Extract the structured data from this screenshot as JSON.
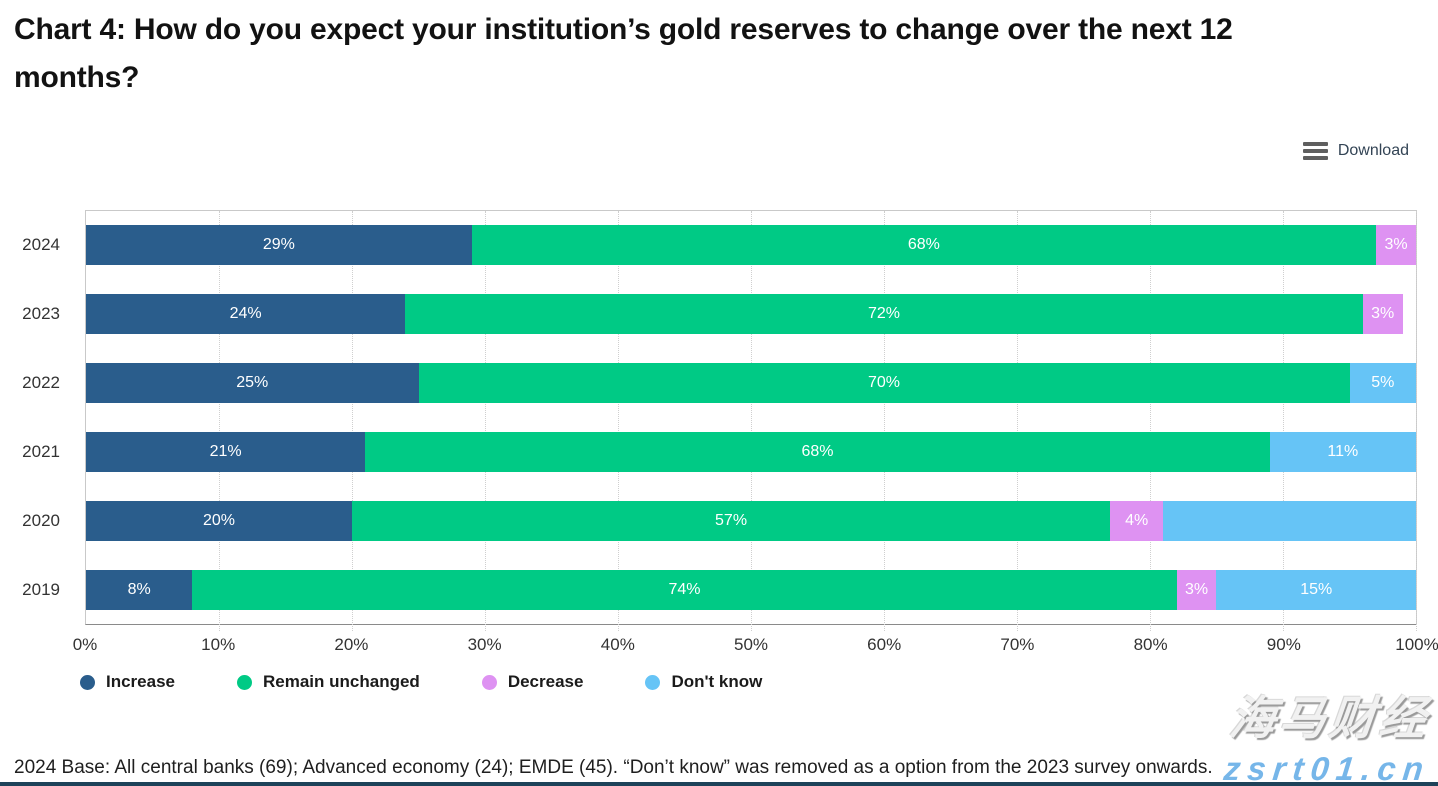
{
  "page": {
    "title": "Chart 4: How do you expect your institution’s gold reserves to change over the next 12 months?"
  },
  "toolbar": {
    "download_label": "Download"
  },
  "chart_data": {
    "type": "bar",
    "orientation": "horizontal",
    "stacked": true,
    "title": "Chart 4: How do you expect your institution’s gold reserves to change over the next 12 months?",
    "categories": [
      "2024",
      "2023",
      "2022",
      "2021",
      "2020",
      "2019"
    ],
    "series": [
      {
        "name": "Increase",
        "color": "#2a5d8c",
        "values": [
          29,
          24,
          25,
          21,
          20,
          8
        ],
        "labels": [
          "29%",
          "24%",
          "25%",
          "21%",
          "20%",
          "8%"
        ]
      },
      {
        "name": "Remain unchanged",
        "color": "#00ca85",
        "values": [
          68,
          72,
          70,
          68,
          57,
          74
        ],
        "labels": [
          "68%",
          "72%",
          "70%",
          "68%",
          "57%",
          "74%"
        ]
      },
      {
        "name": "Decrease",
        "color": "#de92f2",
        "values": [
          3,
          3,
          0,
          0,
          4,
          3
        ],
        "labels": [
          "3%",
          "3%",
          "",
          "",
          "4%",
          "3%"
        ]
      },
      {
        "name": "Don't know",
        "color": "#66c4f6",
        "values": [
          0,
          0,
          5,
          11,
          19,
          15
        ],
        "labels": [
          "",
          "",
          "5%",
          "11%",
          "",
          "15%"
        ]
      }
    ],
    "xlabel": "",
    "ylabel": "",
    "x_ticks": [
      "0%",
      "10%",
      "20%",
      "30%",
      "40%",
      "50%",
      "60%",
      "70%",
      "80%",
      "90%",
      "100%"
    ],
    "xlim": [
      0,
      100
    ],
    "grid": true,
    "gridline_style": "dotted",
    "legend_position": "bottom",
    "bar_label_color": "#ffffff"
  },
  "footer": {
    "text": "2024 Base: All central banks (69); Advanced economy (24); EMDE (45). “Don’t know” was removed as a option from the 2023 survey onwards."
  },
  "watermark": {
    "line1": "海马财经",
    "line2": "zsrt01.cn"
  }
}
